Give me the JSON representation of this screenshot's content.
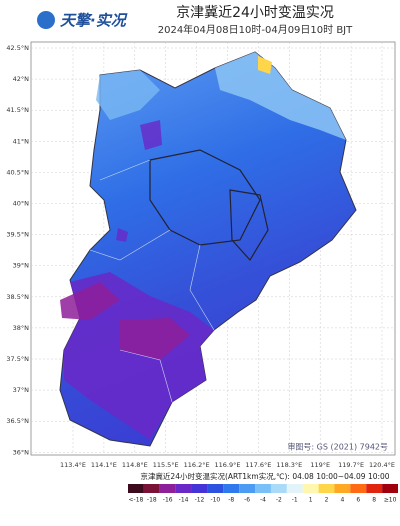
{
  "header": {
    "logo": "天擎·实况",
    "title": "京津冀近24小时变温实况",
    "subtitle": "2024年04月08日10时-04月09日10时 BJT"
  },
  "map": {
    "lat_labels": [
      "42.5°N",
      "42°N",
      "41.5°N",
      "41°N",
      "40.5°N",
      "40°N",
      "39.5°N",
      "39°N",
      "38.5°N",
      "38°N",
      "37.5°N",
      "37°N",
      "36.5°N",
      "36°N"
    ],
    "lon_labels": [
      "113.4°E",
      "114.1°E",
      "114.8°E",
      "115.5°E",
      "116.2°E",
      "116.9°E",
      "117.6°E",
      "118.3°E",
      "119°E",
      "119.7°E",
      "120.4°E"
    ],
    "credit": "审图号: GS (2021) 7942号"
  },
  "legend": {
    "caption": "京津冀近24小时变温实况(ART1km实况,℃): 04.08 10:00~04.09 10:00",
    "items": [
      {
        "label": "<-18",
        "color": "#3c0a1c"
      },
      {
        "label": "-18",
        "color": "#7a1238"
      },
      {
        "label": "-16",
        "color": "#8e1f9a"
      },
      {
        "label": "-14",
        "color": "#6a28c8"
      },
      {
        "label": "-12",
        "color": "#4434d8"
      },
      {
        "label": "-10",
        "color": "#2e52e0"
      },
      {
        "label": "-8",
        "color": "#2f78ee"
      },
      {
        "label": "-6",
        "color": "#4c9cf4"
      },
      {
        "label": "-4",
        "color": "#7ac0f8"
      },
      {
        "label": "-2",
        "color": "#a9dbf8"
      },
      {
        "label": "-1",
        "color": "#e2f3fa"
      },
      {
        "label": "1",
        "color": "#fff6b0"
      },
      {
        "label": "2",
        "color": "#ffd64a"
      },
      {
        "label": "4",
        "color": "#ffa824"
      },
      {
        "label": "6",
        "color": "#ff6a12"
      },
      {
        "label": "8",
        "color": "#e0240e"
      },
      {
        "label": "≥10",
        "color": "#a0000e"
      }
    ]
  }
}
